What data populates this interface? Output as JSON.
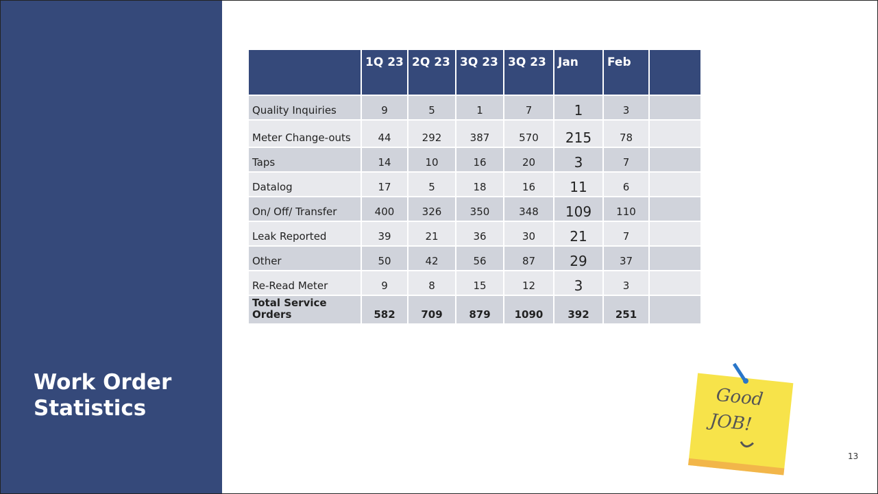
{
  "slide": {
    "title": "Work Order Statistics",
    "page_number": "13",
    "note": [
      "Good",
      "JOB!"
    ],
    "table": {
      "columns": [
        "1Q 23",
        "2Q 23",
        "3Q 23",
        "3Q 23",
        "Jan",
        "Feb"
      ],
      "rows": [
        [
          "Quality Inquiries",
          9,
          5,
          1,
          7,
          1,
          3
        ],
        [
          "Meter Change-outs",
          44,
          292,
          387,
          570,
          215,
          78
        ],
        [
          "Taps",
          14,
          10,
          16,
          20,
          3,
          7
        ],
        [
          "Datalog",
          17,
          5,
          18,
          16,
          11,
          6
        ],
        [
          "On/ Off/ Transfer",
          400,
          326,
          350,
          348,
          109,
          110
        ],
        [
          "Leak Reported",
          39,
          21,
          36,
          30,
          21,
          7
        ],
        [
          "Other",
          50,
          42,
          56,
          87,
          29,
          37
        ],
        [
          "Re-Read Meter",
          9,
          8,
          15,
          12,
          3,
          3
        ],
        [
          "Total Service Orders",
          582,
          709,
          879,
          1090,
          392,
          251
        ]
      ]
    }
  }
}
